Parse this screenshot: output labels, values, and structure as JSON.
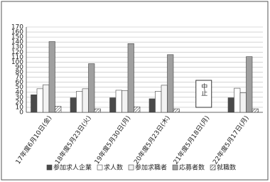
{
  "chart_data": {
    "type": "bar",
    "categories": [
      "17年度6月10日(金)",
      "18年度5月23日(火)",
      "19年度5月30日(月)",
      "20年度5月23日(木)",
      "21年度5月18日(月)",
      "22年度5月17日(月)"
    ],
    "series": [
      {
        "name": "参加求人企業",
        "color": "#4a4a4a",
        "values": [
          35,
          29,
          29,
          27,
          null,
          29
        ]
      },
      {
        "name": "求人数",
        "color": "#ffffff",
        "values": [
          47,
          42,
          44,
          42,
          null,
          48
        ]
      },
      {
        "name": "参加求職者",
        "color": "#f2f2f2",
        "values": [
          55,
          47,
          43,
          54,
          null,
          39
        ]
      },
      {
        "name": "応募者数",
        "color": "#a0a0a0",
        "values": [
          141,
          97,
          137,
          115,
          null,
          111
        ]
      },
      {
        "name": "就職数",
        "color": "#777777",
        "hatched": true,
        "values": [
          12,
          7,
          11,
          7,
          null,
          7
        ]
      }
    ],
    "annotation": "中止",
    "ylim": [
      0,
      170
    ],
    "yticks": [
      0,
      10,
      20,
      30,
      40,
      50,
      60,
      70,
      80,
      90,
      100,
      110,
      120,
      130,
      140,
      150,
      160,
      170
    ],
    "grid": true
  }
}
